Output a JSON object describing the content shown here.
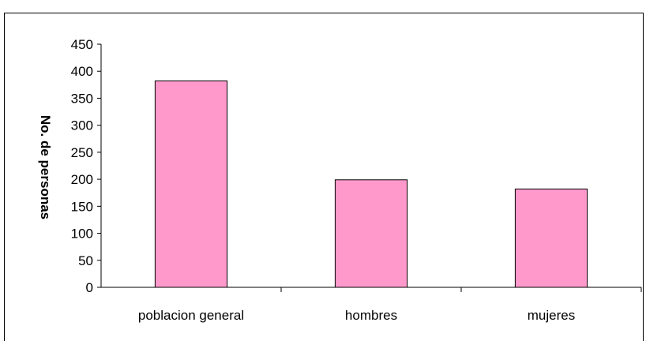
{
  "chart_data": {
    "type": "bar",
    "title": "",
    "xlabel": "",
    "ylabel": "No. de personas",
    "categories": [
      "poblacion general",
      "hombres",
      "mujeres"
    ],
    "values": [
      382,
      199,
      182
    ],
    "ylim": [
      0,
      450
    ],
    "yticks": [
      0,
      50,
      100,
      150,
      200,
      250,
      300,
      350,
      400,
      450
    ],
    "grid": false,
    "legend": "none",
    "colors": {
      "bar_fill": "#ff99cc",
      "bar_stroke": "#000000",
      "axis": "#000000"
    }
  }
}
